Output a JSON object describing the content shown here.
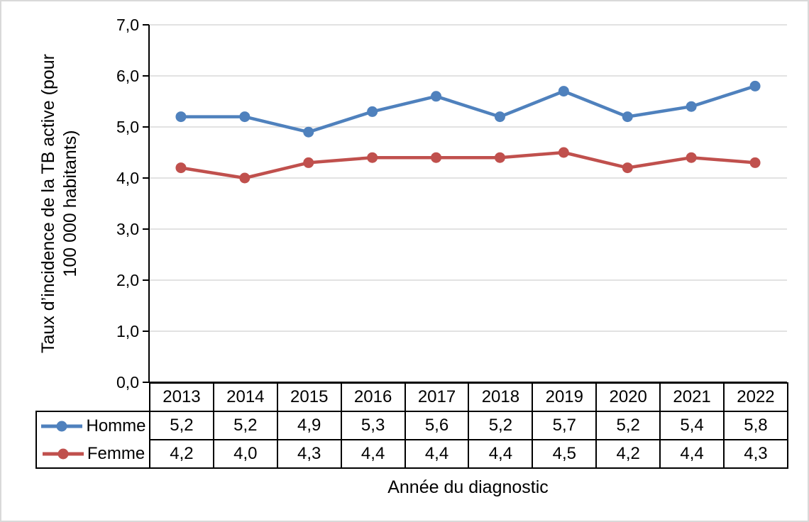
{
  "chart_data": {
    "type": "line",
    "categories": [
      "2013",
      "2014",
      "2015",
      "2016",
      "2017",
      "2018",
      "2019",
      "2020",
      "2021",
      "2022"
    ],
    "series": [
      {
        "name": "Homme",
        "color": "#4F81BD",
        "values": [
          5.2,
          5.2,
          4.9,
          5.3,
          5.6,
          5.2,
          5.7,
          5.2,
          5.4,
          5.8
        ],
        "display_values": [
          "5,2",
          "5,2",
          "4,9",
          "5,3",
          "5,6",
          "5,2",
          "5,7",
          "5,2",
          "5,4",
          "5,8"
        ]
      },
      {
        "name": "Femme",
        "color": "#C0504D",
        "values": [
          4.2,
          4.0,
          4.3,
          4.4,
          4.4,
          4.4,
          4.5,
          4.2,
          4.4,
          4.3
        ],
        "display_values": [
          "4,2",
          "4,0",
          "4,3",
          "4,4",
          "4,4",
          "4,4",
          "4,5",
          "4,2",
          "4,4",
          "4,3"
        ]
      }
    ],
    "ylabel_line1": "Taux d’incidence de la TB active (pour",
    "ylabel_line2": "100 000 habitants)",
    "xlabel": "Année du diagnostic",
    "ylim": [
      0.0,
      7.0
    ],
    "ytick_step": 1.0,
    "ytick_labels": [
      "0,0",
      "1,0",
      "2,0",
      "3,0",
      "4,0",
      "5,0",
      "6,0",
      "7,0"
    ],
    "grid": true,
    "legend_position": "data-table-left-column"
  },
  "colors": {
    "homme_line": "#4F81BD",
    "femme_line": "#C0504D",
    "gridline": "#D9D9D9",
    "axis": "#000000",
    "table_border": "#000000",
    "frame_border": "#D9D9D9",
    "background": "#FFFFFF"
  }
}
